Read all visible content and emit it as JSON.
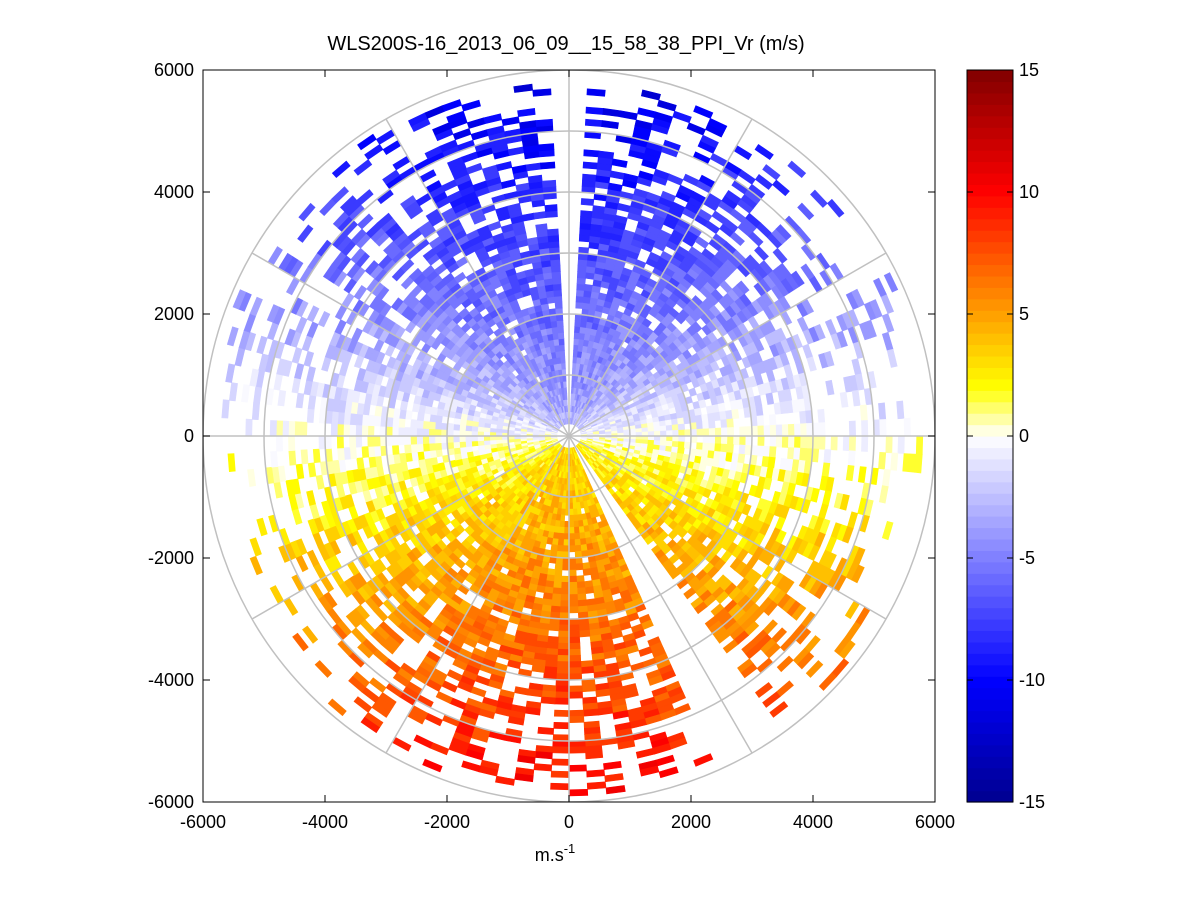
{
  "chart_data": {
    "type": "heatmap",
    "plot_kind": "polar PPI scan (radial velocity)",
    "title": "WLS200S-16_2013_06_09__15_58_38_PPI_Vr (m/s)",
    "xlabel": "m.s",
    "xlabel_superscript": "-1",
    "ylabel": "",
    "xlim": [
      -6000,
      6000
    ],
    "ylim": [
      -6000,
      6000
    ],
    "xticks": [
      "-6000",
      "-4000",
      "-2000",
      "0",
      "2000",
      "4000",
      "6000"
    ],
    "yticks": [
      "6000",
      "4000",
      "2000",
      "0",
      "-2000",
      "-4000",
      "-6000"
    ],
    "range_rings": [
      1000,
      2000,
      3000,
      4000,
      5000,
      6000
    ],
    "spoke_angles_deg": [
      0,
      30,
      60,
      90,
      120,
      150,
      180,
      210,
      240,
      270,
      300,
      330
    ],
    "colorbar": {
      "label": "m/s",
      "min": -15,
      "max": 15,
      "ticks": [
        "15",
        "10",
        "5",
        "0",
        "-5",
        "-10",
        "-15"
      ],
      "colors": [
        "#00008f",
        "#0000ff",
        "#ffffff",
        "#ffff00",
        "#ff8000",
        "#ff0000",
        "#800000"
      ]
    },
    "velocity_pattern": {
      "north_sector_mean": -9,
      "south_sector_mean": 8,
      "east_west_near_zero": 0,
      "max_range_m": 5900,
      "data_gaps_deg": [
        [
          -2,
          2
        ],
        [
          145,
          155
        ],
        [
          205,
          209
        ]
      ]
    }
  }
}
